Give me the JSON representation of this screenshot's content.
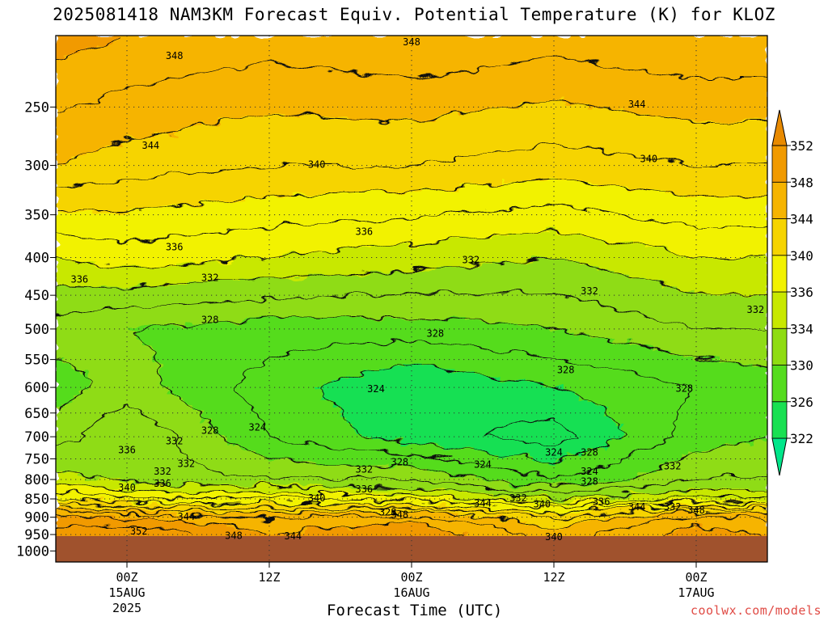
{
  "chart_data": {
    "type": "heatmap",
    "title": "2025081418 NAM3KM Forecast Equiv. Potential Temperature (K) for KLOZ",
    "xlabel": "Forecast Time (UTC)",
    "ylabel": "",
    "y_scale": "log-pressure",
    "y_reversed": true,
    "ylim": [
      200,
      1035
    ],
    "y_ticks": [
      250,
      300,
      350,
      400,
      450,
      500,
      550,
      600,
      650,
      700,
      750,
      800,
      850,
      900,
      950,
      1000
    ],
    "x_ticks": [
      {
        "time": "2025-08-15T00Z",
        "lines": [
          "00Z",
          "15AUG",
          "2025"
        ]
      },
      {
        "time": "2025-08-15T12Z",
        "lines": [
          "12Z"
        ]
      },
      {
        "time": "2025-08-16T00Z",
        "lines": [
          "00Z",
          "16AUG"
        ]
      },
      {
        "time": "2025-08-16T12Z",
        "lines": [
          "12Z"
        ]
      },
      {
        "time": "2025-08-17T00Z",
        "lines": [
          "00Z",
          "17AUG"
        ]
      }
    ],
    "xlim": [
      "2025-08-14T18Z",
      "2025-08-17T06Z"
    ],
    "grid": true,
    "units": "K",
    "colorbar": {
      "levels": [
        322,
        326,
        330,
        334,
        336,
        340,
        344,
        348,
        352
      ],
      "colors": [
        "#00e68a",
        "#19e052",
        "#55dc1e",
        "#8fdc12",
        "#c8e800",
        "#f2f200",
        "#f6d400",
        "#f6b400",
        "#f19a00",
        "#e88a00"
      ]
    },
    "profiles": [
      {
        "time": "2025-08-14T18Z",
        "pressure": [
          200,
          300,
          400,
          500,
          600,
          700,
          800,
          850,
          900,
          950,
          1000
        ],
        "theta_e": [
          349,
          344,
          336,
          331,
          329,
          331,
          335,
          340,
          349,
          351,
          352
        ]
      },
      {
        "time": "2025-08-15T00Z",
        "pressure": [
          200,
          300,
          400,
          500,
          600,
          700,
          800,
          850,
          900,
          950,
          1000
        ],
        "theta_e": [
          348,
          343,
          337,
          330,
          331,
          334,
          333,
          338,
          348,
          352,
          352
        ]
      },
      {
        "time": "2025-08-15T12Z",
        "pressure": [
          200,
          300,
          400,
          500,
          600,
          700,
          800,
          850,
          900,
          950,
          1000
        ],
        "theta_e": [
          347,
          342,
          336,
          329,
          327,
          328,
          332,
          338,
          346,
          348,
          348
        ]
      },
      {
        "time": "2025-08-16T00Z",
        "pressure": [
          200,
          300,
          400,
          500,
          600,
          700,
          800,
          850,
          900,
          950,
          1000
        ],
        "theta_e": [
          348,
          342,
          335,
          329,
          324,
          325,
          332,
          337,
          347,
          350,
          350
        ]
      },
      {
        "time": "2025-08-16T12Z",
        "pressure": [
          200,
          300,
          400,
          500,
          600,
          700,
          800,
          850,
          900,
          950,
          1000
        ],
        "theta_e": [
          347,
          341,
          334,
          330,
          326,
          323,
          328,
          334,
          342,
          345,
          345
        ]
      },
      {
        "time": "2025-08-17T00Z",
        "pressure": [
          200,
          300,
          400,
          500,
          600,
          700,
          800,
          850,
          900,
          950,
          1000
        ],
        "theta_e": [
          348,
          342,
          336,
          332,
          328,
          329,
          332,
          336,
          347,
          349,
          349
        ]
      },
      {
        "time": "2025-08-17T06Z",
        "pressure": [
          200,
          300,
          400,
          500,
          600,
          700,
          800,
          850,
          900,
          950,
          1000
        ],
        "theta_e": [
          348,
          342,
          336,
          332,
          329,
          330,
          332,
          336,
          346,
          348,
          348
        ]
      }
    ],
    "contour_labels": [
      {
        "text": "348",
        "time": "2025-08-15T04Z",
        "pressure": 213
      },
      {
        "text": "348",
        "time": "2025-08-16T00Z",
        "pressure": 204
      },
      {
        "text": "344",
        "time": "2025-08-16T19Z",
        "pressure": 248
      },
      {
        "text": "344",
        "time": "2025-08-15T02Z",
        "pressure": 282
      },
      {
        "text": "340",
        "time": "2025-08-15T16Z",
        "pressure": 299
      },
      {
        "text": "340",
        "time": "2025-08-16T20Z",
        "pressure": 294
      },
      {
        "text": "336",
        "time": "2025-08-17T17Z",
        "pressure": 347
      },
      {
        "text": "336",
        "time": "2025-08-15T04Z",
        "pressure": 387
      },
      {
        "text": "336",
        "time": "2025-08-15T20Z",
        "pressure": 369
      },
      {
        "text": "336",
        "time": "2025-08-14T20Z",
        "pressure": 428
      },
      {
        "text": "332",
        "time": "2025-08-15T07Z",
        "pressure": 426
      },
      {
        "text": "332",
        "time": "2025-08-16T05Z",
        "pressure": 403
      },
      {
        "text": "332",
        "time": "2025-08-16T15Z",
        "pressure": 444
      },
      {
        "text": "332",
        "time": "2025-08-17T05Z",
        "pressure": 471
      },
      {
        "text": "328",
        "time": "2025-08-15T07Z",
        "pressure": 486
      },
      {
        "text": "328",
        "time": "2025-08-16T02Z",
        "pressure": 507
      },
      {
        "text": "328",
        "time": "2025-08-16T13Z",
        "pressure": 568
      },
      {
        "text": "328",
        "time": "2025-08-16T23Z",
        "pressure": 602
      },
      {
        "text": "324",
        "time": "2025-08-15T21Z",
        "pressure": 603
      },
      {
        "text": "324",
        "time": "2025-08-15T11Z",
        "pressure": 680
      },
      {
        "text": "328",
        "time": "2025-08-15T07Z",
        "pressure": 687
      },
      {
        "text": "332",
        "time": "2025-08-15T04Z",
        "pressure": 710
      },
      {
        "text": "336",
        "time": "2025-08-15T00Z",
        "pressure": 730
      },
      {
        "text": "332",
        "time": "2025-08-15T05Z",
        "pressure": 762
      },
      {
        "text": "332",
        "time": "2025-08-15T03Z",
        "pressure": 780
      },
      {
        "text": "336",
        "time": "2025-08-15T03Z",
        "pressure": 810
      },
      {
        "text": "340",
        "time": "2025-08-15T00Z",
        "pressure": 820
      },
      {
        "text": "332",
        "time": "2025-08-15T20Z",
        "pressure": 775
      },
      {
        "text": "328",
        "time": "2025-08-15T23Z",
        "pressure": 758
      },
      {
        "text": "324",
        "time": "2025-08-16T06Z",
        "pressure": 763
      },
      {
        "text": "324",
        "time": "2025-08-16T12Z",
        "pressure": 735
      },
      {
        "text": "328",
        "time": "2025-08-16T15Z",
        "pressure": 735
      },
      {
        "text": "324",
        "time": "2025-08-16T15Z",
        "pressure": 780
      },
      {
        "text": "328",
        "time": "2025-08-16T15Z",
        "pressure": 805
      },
      {
        "text": "332",
        "time": "2025-08-16T22Z",
        "pressure": 767
      },
      {
        "text": "340",
        "time": "2025-08-15T16Z",
        "pressure": 848
      },
      {
        "text": "336",
        "time": "2025-08-15T20Z",
        "pressure": 825
      },
      {
        "text": "332",
        "time": "2025-08-16T09Z",
        "pressure": 848
      },
      {
        "text": "344",
        "time": "2025-08-16T06Z",
        "pressure": 862
      },
      {
        "text": "340",
        "time": "2025-08-16T11Z",
        "pressure": 864
      },
      {
        "text": "336",
        "time": "2025-08-16T16Z",
        "pressure": 858
      },
      {
        "text": "344",
        "time": "2025-08-16T19Z",
        "pressure": 872
      },
      {
        "text": "332",
        "time": "2025-08-16T22Z",
        "pressure": 872
      },
      {
        "text": "348",
        "time": "2025-08-17T00Z",
        "pressure": 880
      },
      {
        "text": "328",
        "time": "2025-08-15T22Z",
        "pressure": 886
      },
      {
        "text": "348",
        "time": "2025-08-15T23Z",
        "pressure": 893
      },
      {
        "text": "344",
        "time": "2025-08-15T05Z",
        "pressure": 898
      },
      {
        "text": "352",
        "time": "2025-08-15T01Z",
        "pressure": 940
      },
      {
        "text": "348",
        "time": "2025-08-15T09Z",
        "pressure": 953
      },
      {
        "text": "344",
        "time": "2025-08-15T14Z",
        "pressure": 955
      },
      {
        "text": "340",
        "time": "2025-08-16T12Z",
        "pressure": 957
      }
    ],
    "ground_color": "#a0522d"
  },
  "credit": "coolwx.com/models"
}
